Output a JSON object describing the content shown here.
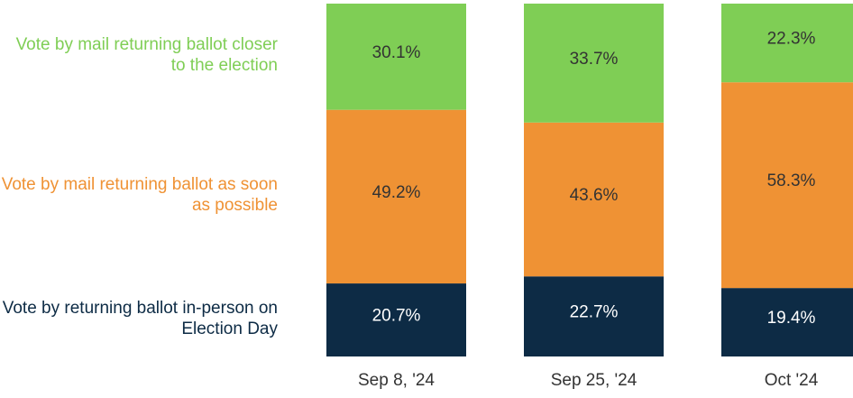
{
  "chart_data": {
    "type": "stacked_bar",
    "categories": [
      "Sep 8, '24",
      "Sep 25, '24",
      "Oct '24"
    ],
    "ylim": [
      0,
      100
    ],
    "series": [
      {
        "name": "Vote by returning ballot in-person on Election Day",
        "color": "#0d2b45",
        "label_color": "#ffffff",
        "values": [
          20.7,
          22.7,
          19.4
        ],
        "value_labels": [
          "20.7%",
          "22.7%",
          "19.4%"
        ]
      },
      {
        "name": "Vote by mail returning ballot as soon as possible",
        "color": "#ef9234",
        "label_color": "#333333",
        "values": [
          49.2,
          43.6,
          58.3
        ],
        "value_labels": [
          "49.2%",
          "43.6%",
          "58.3%"
        ]
      },
      {
        "name": "Vote by mail returning ballot closer to the election",
        "color": "#7fce55",
        "label_color": "#333333",
        "values": [
          30.1,
          33.7,
          22.3
        ],
        "value_labels": [
          "30.1%",
          "33.7%",
          "22.3%"
        ]
      }
    ]
  }
}
